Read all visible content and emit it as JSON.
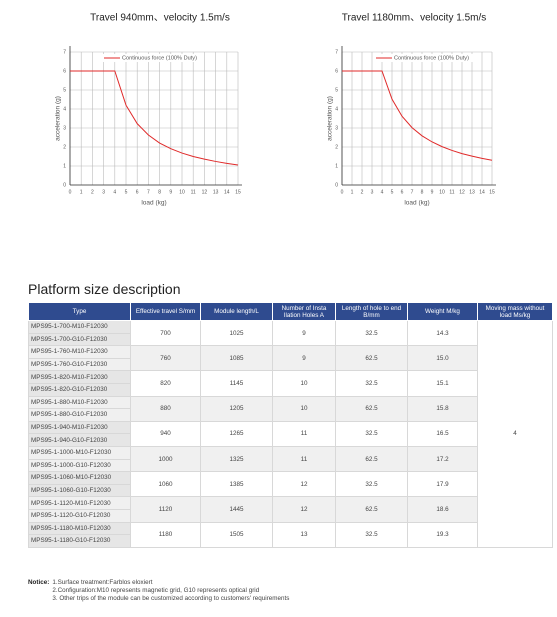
{
  "chart_data": [
    {
      "type": "line",
      "title": "Travel 940mm、velocity 1.5m/s",
      "x_label": "load (kg)",
      "y_label": "acceleration (g)",
      "x": [
        0,
        1,
        2,
        3,
        4,
        5,
        6,
        7,
        8,
        9,
        10,
        11,
        12,
        13,
        14,
        15
      ],
      "series": [
        {
          "name": "Continuous force (100% Duty)",
          "color": "#e02a2a",
          "values": [
            6,
            6,
            6,
            6,
            6,
            4.2,
            3.23,
            2.63,
            2.21,
            1.91,
            1.68,
            1.5,
            1.36,
            1.24,
            1.14,
            1.05
          ]
        }
      ],
      "xlim": [
        0,
        15
      ],
      "ylim": [
        0,
        7
      ],
      "xticks": [
        0,
        1,
        2,
        3,
        4,
        5,
        6,
        7,
        8,
        9,
        10,
        11,
        12,
        13,
        14,
        15
      ],
      "yticks": [
        0,
        1,
        2,
        3,
        4,
        5,
        6,
        7
      ],
      "grid": true
    },
    {
      "type": "line",
      "title": "Travel 1180mm、velocity 1.5m/s",
      "x_label": "load (kg)",
      "y_label": "acceleration (g)",
      "x": [
        0,
        1,
        2,
        3,
        4,
        5,
        6,
        7,
        8,
        9,
        10,
        11,
        12,
        13,
        14,
        15
      ],
      "series": [
        {
          "name": "Continuous force (100% Duty)",
          "color": "#e02a2a",
          "values": [
            6,
            6,
            6,
            6,
            6,
            4.52,
            3.62,
            3.02,
            2.59,
            2.27,
            2.02,
            1.82,
            1.65,
            1.52,
            1.4,
            1.3
          ]
        }
      ],
      "xlim": [
        0,
        15
      ],
      "ylim": [
        0,
        7
      ],
      "xticks": [
        0,
        1,
        2,
        3,
        4,
        5,
        6,
        7,
        8,
        9,
        10,
        11,
        12,
        13,
        14,
        15
      ],
      "yticks": [
        0,
        1,
        2,
        3,
        4,
        5,
        6,
        7
      ],
      "grid": true
    }
  ],
  "section_title": "Platform size description",
  "table": {
    "header": [
      "Type",
      "Effective travel S/mm",
      "Module length/L",
      "Number of Insta llation Holes A",
      "Length of hole to end B/mm",
      "Weight M/kg",
      "Moving mass without load Ms/kg"
    ],
    "moving_mass": "4",
    "groups": [
      {
        "types": [
          "MPS95-1-700-M10-F12030",
          "MPS95-1-700-G10-F12030"
        ],
        "travel": "700",
        "length": "1025",
        "holes": "9",
        "b": "32.5",
        "weight": "14.3"
      },
      {
        "types": [
          "MPS95-1-760-M10-F12030",
          "MPS95-1-760-G10-F12030"
        ],
        "travel": "760",
        "length": "1085",
        "holes": "9",
        "b": "62.5",
        "weight": "15.0"
      },
      {
        "types": [
          "MPS95-1-820-M10-F12030",
          "MPS95-1-820-G10-F12030"
        ],
        "travel": "820",
        "length": "1145",
        "holes": "10",
        "b": "32.5",
        "weight": "15.1"
      },
      {
        "types": [
          "MPS95-1-880-M10-F12030",
          "MPS95-1-880-G10-F12030"
        ],
        "travel": "880",
        "length": "1205",
        "holes": "10",
        "b": "62.5",
        "weight": "15.8"
      },
      {
        "types": [
          "MPS95-1-940-M10-F12030",
          "MPS95-1-940-G10-F12030"
        ],
        "travel": "940",
        "length": "1265",
        "holes": "11",
        "b": "32.5",
        "weight": "16.5"
      },
      {
        "types": [
          "MPS95-1-1000-M10-F12030",
          "MPS95-1-1000-G10-F12030"
        ],
        "travel": "1000",
        "length": "1325",
        "holes": "11",
        "b": "62.5",
        "weight": "17.2"
      },
      {
        "types": [
          "MPS95-1-1060-M10-F12030",
          "MPS95-1-1060-G10-F12030"
        ],
        "travel": "1060",
        "length": "1385",
        "holes": "12",
        "b": "32.5",
        "weight": "17.9"
      },
      {
        "types": [
          "MPS95-1-1120-M10-F12030",
          "MPS95-1-1120-G10-F12030"
        ],
        "travel": "1120",
        "length": "1445",
        "holes": "12",
        "b": "62.5",
        "weight": "18.6"
      },
      {
        "types": [
          "MPS95-1-1180-M10-F12030",
          "MPS95-1-1180-G10-F12030"
        ],
        "travel": "1180",
        "length": "1505",
        "holes": "13",
        "b": "32.5",
        "weight": "19.3"
      }
    ]
  },
  "notice": {
    "label": "Notice:",
    "items": [
      "1.Surface treatment:Farblos eloxiert",
      "2.Configuration:M10 represents magnetic grid, G10 represents optical grid",
      "3. Other trips of the module can be customized according to customers' requirements"
    ]
  }
}
